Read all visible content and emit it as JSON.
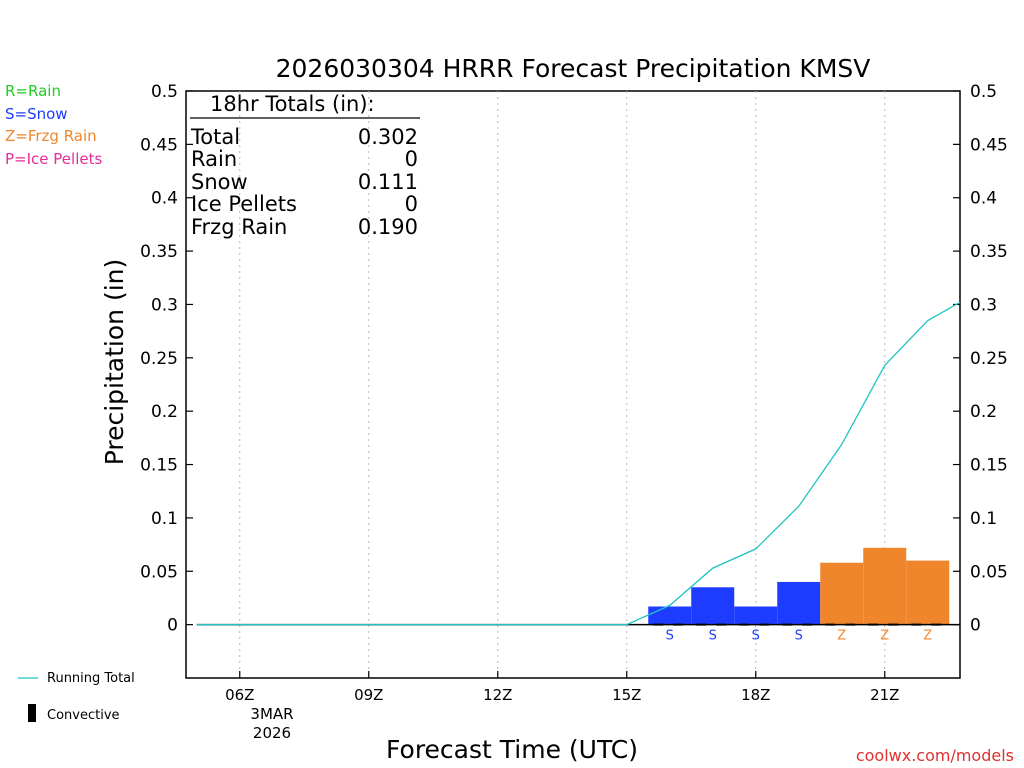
{
  "chart_data": {
    "type": "bar",
    "title": "2026030304 HRRR Forecast Precipitation KMSV",
    "xlabel": "Forecast Time (UTC)",
    "ylabel": "Precipitation (in)",
    "ylim": [
      -0.05,
      0.5
    ],
    "xlim": [
      4.75,
      22.75
    ],
    "yticks": [
      {
        "value": 0,
        "label": "0"
      },
      {
        "value": 0.05,
        "label": "0.05"
      },
      {
        "value": 0.1,
        "label": "0.1"
      },
      {
        "value": 0.15,
        "label": "0.15"
      },
      {
        "value": 0.2,
        "label": "0.2"
      },
      {
        "value": 0.25,
        "label": "0.25"
      },
      {
        "value": 0.3,
        "label": "0.3"
      },
      {
        "value": 0.35,
        "label": "0.35"
      },
      {
        "value": 0.4,
        "label": "0.4"
      },
      {
        "value": 0.45,
        "label": "0.45"
      },
      {
        "value": 0.5,
        "label": "0.5"
      }
    ],
    "xticks": [
      {
        "hour": 6,
        "label": "06Z"
      },
      {
        "hour": 9,
        "label": "09Z"
      },
      {
        "hour": 12,
        "label": "12Z"
      },
      {
        "hour": 15,
        "label": "15Z"
      },
      {
        "hour": 18,
        "label": "18Z"
      },
      {
        "hour": 21,
        "label": "21Z"
      }
    ],
    "date_label": {
      "line1": "3MAR",
      "line2": "2026"
    },
    "grid": "vertical dotted",
    "precip_bars": [
      {
        "hour": 16,
        "value": 0.017,
        "type": "S"
      },
      {
        "hour": 17,
        "value": 0.035,
        "type": "S"
      },
      {
        "hour": 18,
        "value": 0.017,
        "type": "S"
      },
      {
        "hour": 19,
        "value": 0.04,
        "type": "S"
      },
      {
        "hour": 20,
        "value": 0.058,
        "type": "Z"
      },
      {
        "hour": 21,
        "value": 0.072,
        "type": "Z"
      },
      {
        "hour": 22,
        "value": 0.06,
        "type": "Z"
      }
    ],
    "running_total": {
      "hours": [
        5,
        6,
        7,
        8,
        9,
        10,
        11,
        12,
        13,
        14,
        15,
        16,
        17,
        18,
        19,
        20,
        21,
        22,
        22.75
      ],
      "values": [
        0,
        0,
        0,
        0,
        0,
        0,
        0,
        0,
        0,
        0,
        0,
        0.018,
        0.053,
        0.071,
        0.111,
        0.169,
        0.243,
        0.285,
        0.302
      ]
    },
    "type_colors": {
      "R": "#22cc22",
      "S": "#1e3cff",
      "Z": "#f0862c",
      "P": "#e62d9a"
    },
    "line_color": "#20c4c4",
    "totals_box": {
      "heading": "18hr Totals (in):",
      "rows": [
        {
          "label": "Total",
          "value": "0.302"
        },
        {
          "label": "Rain",
          "value": "0"
        },
        {
          "label": "Snow",
          "value": "0.111"
        },
        {
          "label": "Ice Pellets",
          "value": "0"
        },
        {
          "label": "Frzg Rain",
          "value": "0.190"
        }
      ]
    }
  },
  "type_legend": [
    {
      "label": "R=Rain",
      "color": "#22cc22"
    },
    {
      "label": "S=Snow",
      "color": "#1e3cff"
    },
    {
      "label": "Z=Frzg Rain",
      "color": "#f0862c"
    },
    {
      "label": "P=Ice Pellets",
      "color": "#e62d9a"
    }
  ],
  "line_legend": {
    "running_total": "Running Total",
    "convective": "Convective"
  },
  "credit": "coolwx.com/models"
}
